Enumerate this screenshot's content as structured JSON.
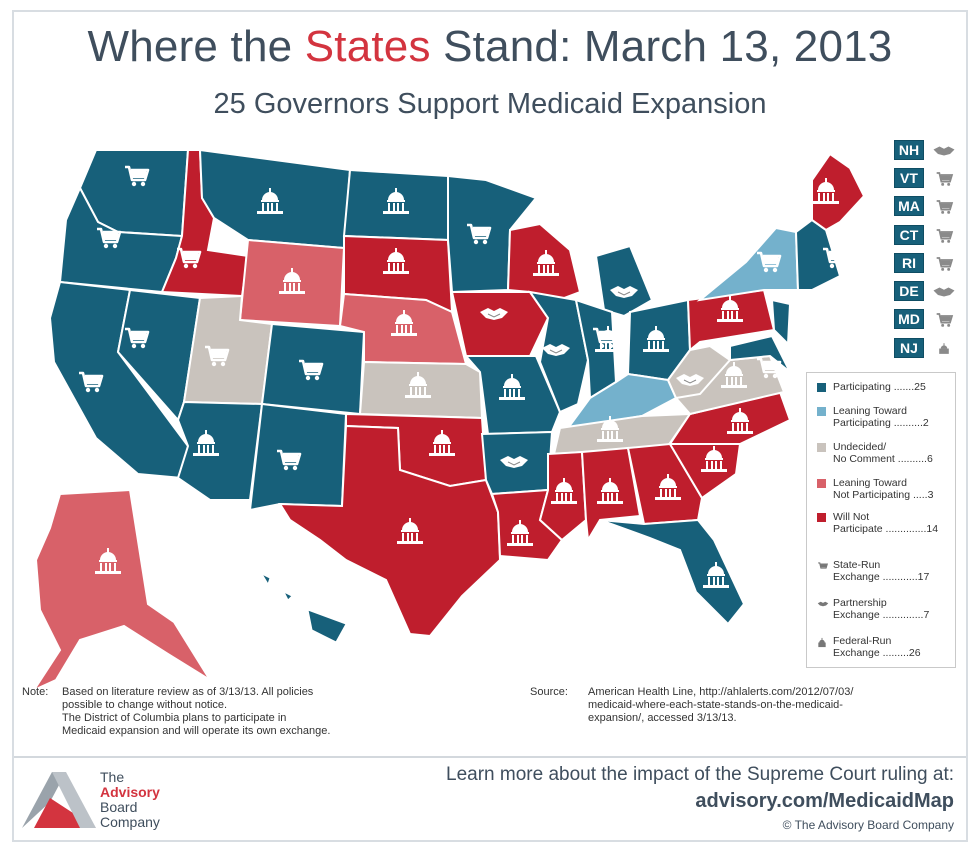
{
  "header": {
    "title_pre": "Where the ",
    "title_accent": "States",
    "title_post": " Stand: March 13, 2013",
    "subtitle": "25 Governors Support Medicaid Expansion"
  },
  "colors": {
    "participating": "#17607a",
    "leaning_toward_participating": "#74b1cc",
    "undecided": "#c9c3bd",
    "leaning_toward_not": "#d86169",
    "will_not": "#bf1e2d",
    "icon_white": "#ffffff",
    "hawaii_icon": "#8a8a8a"
  },
  "small_states": [
    {
      "abbr": "NH",
      "icon": "partnership-icon"
    },
    {
      "abbr": "VT",
      "icon": "cart-icon"
    },
    {
      "abbr": "MA",
      "icon": "cart-icon"
    },
    {
      "abbr": "CT",
      "icon": "cart-icon"
    },
    {
      "abbr": "RI",
      "icon": "cart-icon"
    },
    {
      "abbr": "DE",
      "icon": "partnership-icon"
    },
    {
      "abbr": "MD",
      "icon": "cart-icon"
    },
    {
      "abbr": "NJ",
      "icon": "capitol-icon"
    }
  ],
  "legend": {
    "status": [
      {
        "label_1": "Participating",
        "label_2": "",
        "count": "25",
        "color": "#17607a"
      },
      {
        "label_1": "Leaning Toward",
        "label_2": "Participating",
        "count": "2",
        "color": "#74b1cc"
      },
      {
        "label_1": "Undecided/",
        "label_2": "No Comment",
        "count": "6",
        "color": "#c9c3bd"
      },
      {
        "label_1": "Leaning Toward",
        "label_2": "Not Participating",
        "count": "3",
        "color": "#d86169"
      },
      {
        "label_1": "Will Not",
        "label_2": "Participate",
        "count": "14",
        "color": "#bf1e2d"
      }
    ],
    "exchange": [
      {
        "label_1": "State-Run",
        "label_2": "Exchange",
        "count": "17",
        "icon": "cart-icon"
      },
      {
        "label_1": "Partnership",
        "label_2": "Exchange",
        "count": "7",
        "icon": "partnership-icon"
      },
      {
        "label_1": "Federal-Run",
        "label_2": "Exchange",
        "count": "26",
        "icon": "capitol-icon"
      }
    ]
  },
  "notes": {
    "note_label": "Note:",
    "note_lines": [
      "Based on literature review as of 3/13/13. All policies",
      "possible to change without notice.",
      "The District of Columbia plans to participate in",
      "Medicaid expansion and will operate its own exchange."
    ],
    "source_label": "Source:",
    "source_lines": [
      "American Health Line, http://ahlalerts.com/2012/07/03/",
      "medicaid-where-each-state-stands-on-the-medicaid-",
      "expansion/, accessed 3/13/13."
    ]
  },
  "footer": {
    "learn_more": "Learn more about the impact of the Supreme Court ruling at:",
    "url": "advisory.com/MedicaidMap",
    "copyright": "© The Advisory Board Company",
    "logo_line1": "The",
    "logo_line2": "Advisory",
    "logo_line3": "Board",
    "logo_line4": "Company"
  }
}
